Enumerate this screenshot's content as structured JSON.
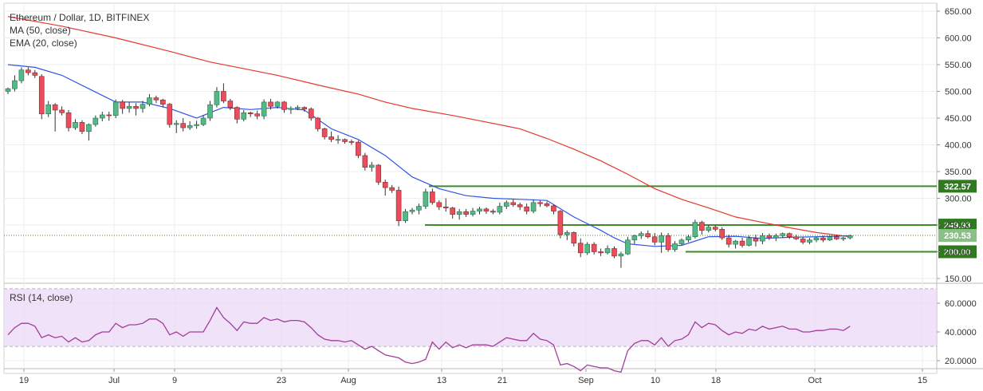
{
  "chart_data": [
    {
      "type": "candlestick",
      "title": "Ethereum / Dollar, 1D, BITFINEX",
      "indicators": [
        "MA (50, close)",
        "EMA (20, close)"
      ],
      "ylim": [
        140,
        660
      ],
      "y_ticks": [
        "650.00",
        "600.00",
        "550.00",
        "500.00",
        "450.00",
        "400.00",
        "350.00",
        "300.00",
        "250.00",
        "200.00",
        "150.00"
      ],
      "x_ticks": [
        "19",
        "Jul",
        "9",
        "23",
        "Aug",
        "13",
        "21",
        "Sep",
        "10",
        "18",
        "Oct",
        "15"
      ],
      "last_price": "230.53",
      "levels": [
        {
          "label": "322.57",
          "value": 322.57
        },
        {
          "label": "249.93",
          "value": 249.93
        },
        {
          "label": "200.00",
          "value": 200.0
        }
      ],
      "candles": [
        [
          0,
          500,
          507,
          495,
          505
        ],
        [
          1,
          505,
          530,
          500,
          520
        ],
        [
          2,
          520,
          545,
          515,
          540
        ],
        [
          3,
          540,
          545,
          530,
          535
        ],
        [
          4,
          535,
          540,
          525,
          530
        ],
        [
          5,
          528,
          532,
          448,
          458
        ],
        [
          6,
          458,
          482,
          452,
          475
        ],
        [
          7,
          475,
          478,
          425,
          465
        ],
        [
          8,
          465,
          472,
          455,
          460
        ],
        [
          9,
          460,
          465,
          425,
          432
        ],
        [
          10,
          432,
          448,
          428,
          442
        ],
        [
          11,
          442,
          446,
          420,
          425
        ],
        [
          12,
          425,
          440,
          408,
          438
        ],
        [
          13,
          438,
          455,
          434,
          450
        ],
        [
          14,
          450,
          462,
          444,
          456
        ],
        [
          15,
          456,
          462,
          445,
          455
        ],
        [
          16,
          455,
          485,
          450,
          480
        ],
        [
          17,
          480,
          484,
          458,
          468
        ],
        [
          18,
          468,
          480,
          460,
          472
        ],
        [
          19,
          472,
          478,
          455,
          468
        ],
        [
          20,
          468,
          482,
          460,
          476
        ],
        [
          21,
          476,
          495,
          472,
          488
        ],
        [
          22,
          488,
          492,
          478,
          484
        ],
        [
          23,
          484,
          486,
          470,
          476
        ],
        [
          24,
          476,
          478,
          432,
          438
        ],
        [
          25,
          438,
          446,
          422,
          440
        ],
        [
          26,
          440,
          450,
          425,
          432
        ],
        [
          27,
          432,
          444,
          428,
          436
        ],
        [
          28,
          436,
          445,
          430,
          438
        ],
        [
          29,
          438,
          455,
          435,
          450
        ],
        [
          30,
          450,
          482,
          445,
          475
        ],
        [
          31,
          475,
          508,
          470,
          500
        ],
        [
          32,
          500,
          515,
          478,
          482
        ],
        [
          33,
          482,
          486,
          465,
          470
        ],
        [
          34,
          470,
          472,
          440,
          448
        ],
        [
          35,
          448,
          465,
          444,
          460
        ],
        [
          36,
          460,
          462,
          452,
          458
        ],
        [
          37,
          458,
          464,
          448,
          454
        ],
        [
          38,
          454,
          485,
          448,
          480
        ],
        [
          39,
          480,
          486,
          466,
          472
        ],
        [
          40,
          472,
          482,
          468,
          480
        ],
        [
          41,
          480,
          482,
          460,
          466
        ],
        [
          42,
          466,
          472,
          458,
          468
        ],
        [
          43,
          468,
          474,
          465,
          470
        ],
        [
          44,
          470,
          472,
          462,
          467
        ],
        [
          45,
          467,
          470,
          445,
          450
        ],
        [
          46,
          450,
          452,
          425,
          430
        ],
        [
          47,
          430,
          432,
          410,
          415
        ],
        [
          48,
          415,
          425,
          405,
          410
        ],
        [
          49,
          410,
          418,
          402,
          410
        ],
        [
          50,
          410,
          412,
          402,
          406
        ],
        [
          51,
          406,
          410,
          400,
          405
        ],
        [
          52,
          405,
          408,
          375,
          380
        ],
        [
          53,
          380,
          385,
          352,
          358
        ],
        [
          54,
          358,
          368,
          350,
          362
        ],
        [
          55,
          362,
          364,
          325,
          330
        ],
        [
          56,
          330,
          335,
          305,
          320
        ],
        [
          57,
          320,
          325,
          310,
          315
        ],
        [
          58,
          315,
          322,
          248,
          258
        ],
        [
          59,
          258,
          280,
          254,
          275
        ],
        [
          60,
          275,
          282,
          270,
          278
        ],
        [
          61,
          278,
          290,
          270,
          285
        ],
        [
          62,
          285,
          318,
          280,
          312
        ],
        [
          63,
          312,
          318,
          288,
          292
        ],
        [
          64,
          292,
          296,
          278,
          284
        ],
        [
          65,
          284,
          300,
          275,
          282
        ],
        [
          66,
          282,
          284,
          262,
          270
        ],
        [
          67,
          270,
          280,
          260,
          275
        ],
        [
          68,
          275,
          280,
          265,
          270
        ],
        [
          69,
          270,
          282,
          266,
          276
        ],
        [
          70,
          276,
          284,
          270,
          280
        ],
        [
          71,
          280,
          283,
          271,
          276
        ],
        [
          72,
          276,
          280,
          270,
          274
        ],
        [
          73,
          274,
          292,
          270,
          285
        ],
        [
          74,
          285,
          296,
          280,
          292
        ],
        [
          75,
          292,
          298,
          284,
          288
        ],
        [
          76,
          288,
          292,
          278,
          284
        ],
        [
          77,
          284,
          290,
          270,
          276
        ],
        [
          78,
          276,
          298,
          272,
          292
        ],
        [
          79,
          292,
          296,
          284,
          290
        ],
        [
          80,
          290,
          294,
          283,
          286
        ],
        [
          81,
          286,
          288,
          270,
          276
        ],
        [
          82,
          276,
          278,
          225,
          232
        ],
        [
          83,
          232,
          240,
          222,
          236
        ],
        [
          84,
          236,
          238,
          210,
          216
        ],
        [
          85,
          216,
          225,
          190,
          198
        ],
        [
          86,
          198,
          218,
          194,
          214
        ],
        [
          87,
          214,
          218,
          195,
          200
        ],
        [
          88,
          200,
          206,
          192,
          198
        ],
        [
          89,
          198,
          212,
          195,
          206
        ],
        [
          90,
          206,
          210,
          188,
          192
        ],
        [
          91,
          192,
          200,
          170,
          196
        ],
        [
          92,
          196,
          228,
          194,
          222
        ],
        [
          93,
          222,
          232,
          215,
          230
        ],
        [
          94,
          230,
          238,
          224,
          234
        ],
        [
          95,
          234,
          240,
          225,
          228
        ],
        [
          96,
          228,
          235,
          212,
          218
        ],
        [
          97,
          218,
          236,
          198,
          230
        ],
        [
          98,
          230,
          235,
          200,
          204
        ],
        [
          99,
          204,
          220,
          200,
          215
        ],
        [
          100,
          215,
          225,
          212,
          222
        ],
        [
          101,
          222,
          232,
          218,
          228
        ],
        [
          102,
          228,
          260,
          225,
          255
        ],
        [
          103,
          255,
          258,
          232,
          240
        ],
        [
          104,
          240,
          250,
          236,
          246
        ],
        [
          105,
          246,
          250,
          238,
          242
        ],
        [
          106,
          242,
          246,
          222,
          226
        ],
        [
          107,
          226,
          232,
          208,
          214
        ],
        [
          108,
          214,
          222,
          206,
          220
        ],
        [
          109,
          220,
          226,
          208,
          212
        ],
        [
          110,
          212,
          230,
          210,
          225
        ],
        [
          111,
          225,
          232,
          210,
          220
        ],
        [
          112,
          220,
          235,
          214,
          230
        ],
        [
          113,
          230,
          234,
          222,
          226
        ],
        [
          114,
          226,
          234,
          220,
          230
        ],
        [
          115,
          230,
          236,
          226,
          234
        ],
        [
          116,
          234,
          236,
          224,
          228
        ],
        [
          117,
          228,
          232,
          222,
          224
        ],
        [
          118,
          224,
          228,
          214,
          218
        ],
        [
          119,
          218,
          226,
          214,
          222
        ],
        [
          120,
          222,
          228,
          218,
          226
        ],
        [
          121,
          226,
          230,
          218,
          222
        ],
        [
          122,
          222,
          230,
          220,
          228
        ],
        [
          123,
          228,
          232,
          222,
          224
        ],
        [
          124,
          224,
          228,
          220,
          226
        ],
        [
          125,
          226,
          232,
          223,
          230
        ]
      ],
      "ma50": [
        [
          0,
          640
        ],
        [
          8,
          622
        ],
        [
          16,
          600
        ],
        [
          24,
          575
        ],
        [
          30,
          555
        ],
        [
          36,
          540
        ],
        [
          40,
          530
        ],
        [
          46,
          512
        ],
        [
          52,
          495
        ],
        [
          56,
          480
        ],
        [
          60,
          468
        ],
        [
          66,
          455
        ],
        [
          70,
          445
        ],
        [
          76,
          430
        ],
        [
          80,
          412
        ],
        [
          84,
          392
        ],
        [
          88,
          370
        ],
        [
          92,
          345
        ],
        [
          96,
          318
        ],
        [
          100,
          298
        ],
        [
          104,
          282
        ],
        [
          108,
          265
        ],
        [
          112,
          255
        ],
        [
          116,
          245
        ],
        [
          120,
          236
        ],
        [
          125,
          228
        ]
      ],
      "ema20": [
        [
          0,
          550
        ],
        [
          4,
          545
        ],
        [
          8,
          530
        ],
        [
          12,
          505
        ],
        [
          16,
          480
        ],
        [
          20,
          480
        ],
        [
          24,
          468
        ],
        [
          28,
          450
        ],
        [
          32,
          470
        ],
        [
          36,
          466
        ],
        [
          40,
          470
        ],
        [
          44,
          465
        ],
        [
          48,
          430
        ],
        [
          52,
          410
        ],
        [
          56,
          380
        ],
        [
          60,
          340
        ],
        [
          64,
          318
        ],
        [
          68,
          305
        ],
        [
          72,
          300
        ],
        [
          76,
          298
        ],
        [
          80,
          296
        ],
        [
          84,
          265
        ],
        [
          88,
          240
        ],
        [
          90,
          226
        ],
        [
          92,
          215
        ],
        [
          96,
          210
        ],
        [
          100,
          212
        ],
        [
          104,
          228
        ],
        [
          108,
          229
        ],
        [
          112,
          225
        ],
        [
          116,
          227
        ],
        [
          120,
          228
        ],
        [
          125,
          230
        ]
      ]
    },
    {
      "type": "line",
      "title": "RSI (14, close)",
      "ylim": [
        15,
        72
      ],
      "y_ticks": [
        "60.0000",
        "40.0000",
        "20.0000"
      ],
      "upper_band": 70,
      "lower_band": 30,
      "values": [
        38,
        43,
        46,
        46,
        44,
        36,
        38,
        36,
        37,
        33,
        36,
        33,
        34,
        38,
        40,
        40,
        46,
        43,
        45,
        45,
        46,
        49,
        49,
        46,
        38,
        40,
        37,
        40,
        40,
        40,
        48,
        57,
        50,
        46,
        41,
        47,
        46,
        46,
        50,
        48,
        49,
        47,
        48,
        48,
        47,
        43,
        38,
        35,
        34,
        34,
        33,
        34,
        31,
        28,
        30,
        27,
        24,
        23,
        22,
        19,
        18,
        19,
        21,
        33,
        28,
        33,
        29,
        31,
        29,
        31,
        31,
        31,
        30,
        33,
        36,
        35,
        34,
        34,
        39,
        35,
        34,
        31,
        17,
        18,
        16,
        13,
        17,
        16,
        15,
        15,
        13,
        12,
        27,
        32,
        34,
        34,
        31,
        36,
        30,
        34,
        35,
        38,
        47,
        43,
        46,
        45,
        41,
        38,
        40,
        39,
        42,
        41,
        44,
        42,
        43,
        44,
        42,
        42,
        40,
        40,
        41,
        41,
        42,
        42,
        41,
        44
      ]
    }
  ]
}
